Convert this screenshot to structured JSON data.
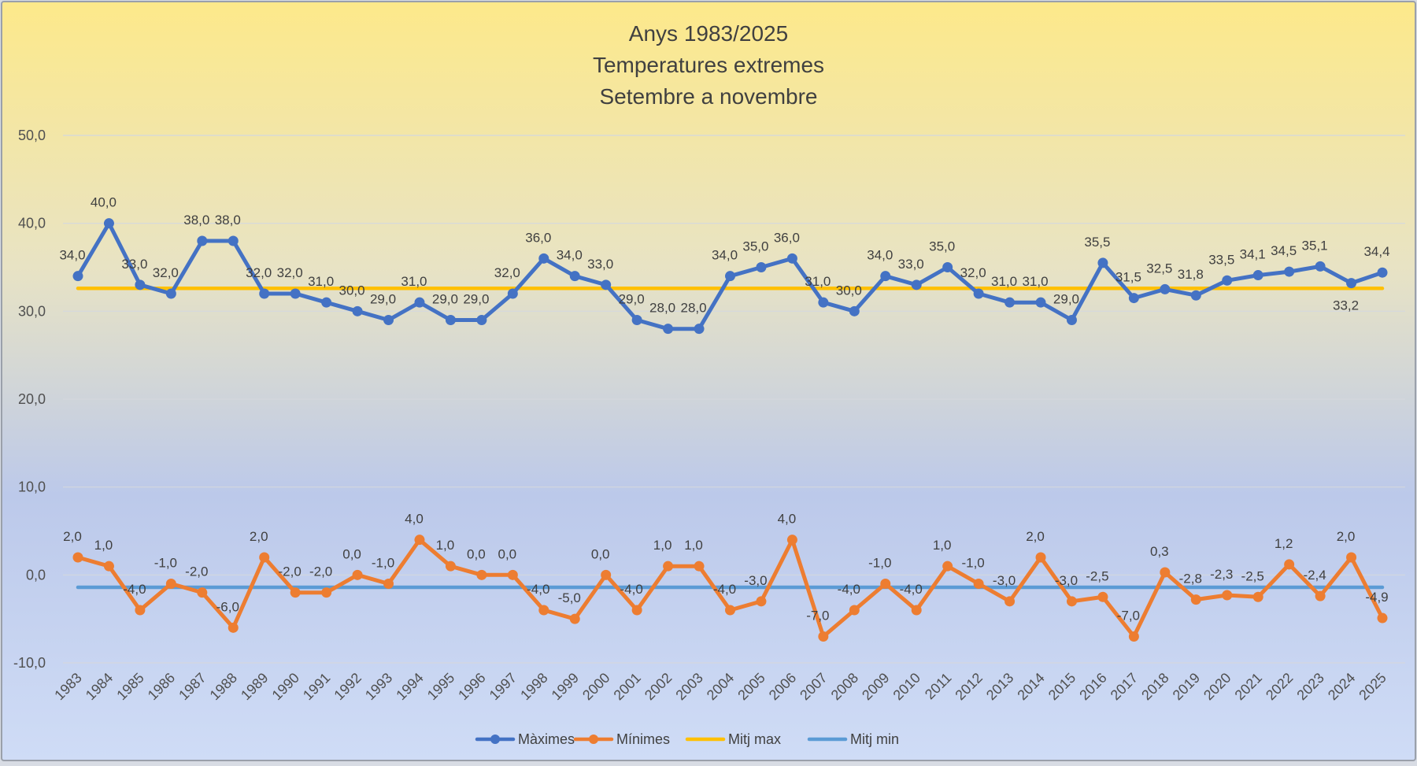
{
  "chart_data": {
    "type": "line",
    "title_lines": [
      "Anys 1983/2025",
      "Temperatures extremes",
      "Setembre a novembre"
    ],
    "categories": [
      "1983",
      "1984",
      "1985",
      "1986",
      "1987",
      "1988",
      "1989",
      "1990",
      "1991",
      "1992",
      "1993",
      "1994",
      "1995",
      "1996",
      "1997",
      "1998",
      "1999",
      "2000",
      "2001",
      "2002",
      "2003",
      "2004",
      "2005",
      "2006",
      "2007",
      "2008",
      "2009",
      "2010",
      "2011",
      "2012",
      "2013",
      "2014",
      "2015",
      "2016",
      "2017",
      "2018",
      "2019",
      "2020",
      "2021",
      "2022",
      "2023",
      "2024",
      "2025"
    ],
    "y_ticks": [
      "-10,0",
      "0,0",
      "10,0",
      "20,0",
      "30,0",
      "40,0",
      "50,0"
    ],
    "ylim": [
      -10,
      50
    ],
    "grid": true,
    "legend_position": "bottom",
    "series": [
      {
        "name": "Màximes",
        "color": "#4472c4",
        "marker": true,
        "values": [
          34.0,
          40.0,
          33.0,
          32.0,
          38.0,
          38.0,
          32.0,
          32.0,
          31.0,
          30.0,
          29.0,
          31.0,
          29.0,
          29.0,
          32.0,
          36.0,
          34.0,
          33.0,
          29.0,
          28.0,
          28.0,
          34.0,
          35.0,
          36.0,
          31.0,
          30.0,
          34.0,
          33.0,
          35.0,
          32.0,
          31.0,
          31.0,
          29.0,
          35.5,
          31.5,
          32.5,
          31.8,
          33.5,
          34.1,
          34.5,
          35.1,
          33.2,
          34.4
        ],
        "labels": [
          "34,0",
          "40,0",
          "33,0",
          "32,0",
          "38,0",
          "38,0",
          "32,0",
          "32,0",
          "31,0",
          "30,0",
          "29,0",
          "31,0",
          "29,0",
          "29,0",
          "32,0",
          "36,0",
          "34,0",
          "33,0",
          "29,0",
          "28,0",
          "28,0",
          "34,0",
          "35,0",
          "36,0",
          "31,0",
          "30,0",
          "34,0",
          "33,0",
          "35,0",
          "32,0",
          "31,0",
          "31,0",
          "29,0",
          "35,5",
          "31,5",
          "32,5",
          "31,8",
          "33,5",
          "34,1",
          "34,5",
          "35,1",
          "33,2",
          "34,4"
        ]
      },
      {
        "name": "Mínimes",
        "color": "#ed7d31",
        "marker": true,
        "values": [
          2.0,
          1.0,
          -4.0,
          -1.0,
          -2.0,
          -6.0,
          2.0,
          -2.0,
          -2.0,
          0.0,
          -1.0,
          4.0,
          1.0,
          0.0,
          0.0,
          -4.0,
          -5.0,
          0.0,
          -4.0,
          1.0,
          1.0,
          -4.0,
          -3.0,
          4.0,
          -7.0,
          -4.0,
          -1.0,
          -4.0,
          1.0,
          -1.0,
          -3.0,
          2.0,
          -3.0,
          -2.5,
          -7.0,
          0.3,
          -2.8,
          -2.3,
          -2.5,
          1.2,
          -2.4,
          2.0,
          -4.9
        ],
        "labels": [
          "2,0",
          "1,0",
          "-4,0",
          "-1,0",
          "-2,0",
          "-6,0",
          "2,0",
          "-2,0",
          "-2,0",
          "0,0",
          "-1,0",
          "4,0",
          "1,0",
          "0,0",
          "0,0",
          "-4,0",
          "-5,0",
          "0,0",
          "-4,0",
          "1,0",
          "1,0",
          "-4,0",
          "-3,0",
          "4,0",
          "-7,0",
          "-4,0",
          "-1,0",
          "-4,0",
          "1,0",
          "-1,0",
          "-3,0",
          "2,0",
          "-3,0",
          "-2,5",
          "-7,0",
          "0,3",
          "-2,8",
          "-2,3",
          "-2,5",
          "1,2",
          "-2,4",
          "2,0",
          "-4,9"
        ]
      },
      {
        "name": "Mitj max",
        "color": "#ffc000",
        "marker": false,
        "values": [
          32.6,
          32.6,
          32.6,
          32.6,
          32.6,
          32.6,
          32.6,
          32.6,
          32.6,
          32.6,
          32.6,
          32.6,
          32.6,
          32.6,
          32.6,
          32.6,
          32.6,
          32.6,
          32.6,
          32.6,
          32.6,
          32.6,
          32.6,
          32.6,
          32.6,
          32.6,
          32.6,
          32.6,
          32.6,
          32.6,
          32.6,
          32.6,
          32.6,
          32.6,
          32.6,
          32.6,
          32.6,
          32.6,
          32.6,
          32.6,
          32.6,
          32.6,
          32.6
        ]
      },
      {
        "name": "Mitj min",
        "color": "#5b9bd5",
        "marker": false,
        "values": [
          -1.4,
          -1.4,
          -1.4,
          -1.4,
          -1.4,
          -1.4,
          -1.4,
          -1.4,
          -1.4,
          -1.4,
          -1.4,
          -1.4,
          -1.4,
          -1.4,
          -1.4,
          -1.4,
          -1.4,
          -1.4,
          -1.4,
          -1.4,
          -1.4,
          -1.4,
          -1.4,
          -1.4,
          -1.4,
          -1.4,
          -1.4,
          -1.4,
          -1.4,
          -1.4,
          -1.4,
          -1.4,
          -1.4,
          -1.4,
          -1.4,
          -1.4,
          -1.4,
          -1.4,
          -1.4,
          -1.4,
          -1.4,
          -1.4,
          -1.4
        ]
      }
    ]
  }
}
